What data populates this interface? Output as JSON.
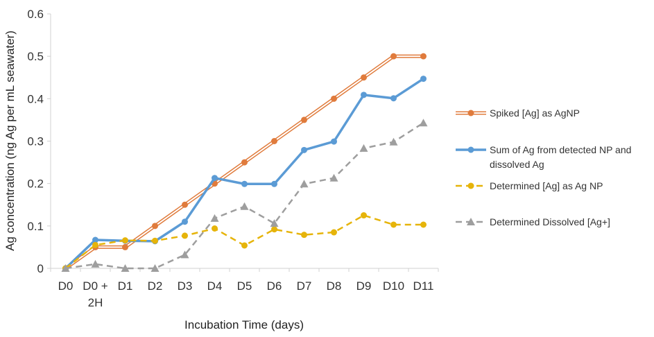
{
  "chart_data": {
    "type": "line",
    "title": "",
    "xlabel": "Incubation Time (days)",
    "ylabel": "Ag concentration (ng Ag per mL seawater)",
    "ylim": [
      0,
      0.6
    ],
    "yticks": [
      0,
      0.1,
      0.2,
      0.3,
      0.4,
      0.5,
      0.6
    ],
    "ytick_labels": [
      "0",
      "0.1",
      "0.2",
      "0.3",
      "0.4",
      "0.5",
      "0.6"
    ],
    "grid": false,
    "legend_position": "right",
    "categories": [
      "D0",
      "D0 + 2H",
      "D1",
      "D2",
      "D3",
      "D4",
      "D5",
      "D6",
      "D7",
      "D8",
      "D9",
      "D10",
      "D11"
    ],
    "category_lines": [
      [
        "D0"
      ],
      [
        "D0 +",
        "2H"
      ],
      [
        "D1"
      ],
      [
        "D2"
      ],
      [
        "D3"
      ],
      [
        "D4"
      ],
      [
        "D5"
      ],
      [
        "D6"
      ],
      [
        "D7"
      ],
      [
        "D8"
      ],
      [
        "D9"
      ],
      [
        "D10"
      ],
      [
        "D11"
      ]
    ],
    "series": [
      {
        "name": "Spiked [Ag] as AgNP",
        "legend_lines": [
          "Spiked [Ag] as AgNP"
        ],
        "color": "#e07b3c",
        "style": "double",
        "marker": "circle",
        "values": [
          0,
          0.05,
          0.05,
          0.1,
          0.15,
          0.2,
          0.25,
          0.3,
          0.35,
          0.4,
          0.45,
          0.5,
          0.5
        ]
      },
      {
        "name": "Sum of Ag from detected NP and dissolved Ag",
        "legend_lines": [
          "Sum of Ag from detected NP and",
          "dissolved Ag"
        ],
        "color": "#5b9bd5",
        "style": "solid",
        "marker": "circle",
        "values": [
          0,
          0.067,
          0.065,
          0.064,
          0.11,
          0.213,
          0.199,
          0.199,
          0.279,
          0.299,
          0.409,
          0.401,
          0.447
        ]
      },
      {
        "name": "Determined [Ag] as Ag NP",
        "legend_lines": [
          "Determined [Ag] as Ag NP"
        ],
        "color": "#e6b40a",
        "style": "dashed",
        "marker": "circle",
        "values": [
          0,
          0.055,
          0.066,
          0.065,
          0.077,
          0.094,
          0.054,
          0.092,
          0.079,
          0.085,
          0.125,
          0.103,
          0.103
        ]
      },
      {
        "name": "Determined Dissolved [Ag+]",
        "legend_lines": [
          "Determined Dissolved [Ag+]"
        ],
        "color": "#9e9e9e",
        "style": "dashed",
        "marker": "triangle",
        "values": [
          0,
          0.01,
          0,
          0,
          0.032,
          0.118,
          0.146,
          0.106,
          0.199,
          0.213,
          0.283,
          0.298,
          0.343
        ]
      }
    ]
  }
}
